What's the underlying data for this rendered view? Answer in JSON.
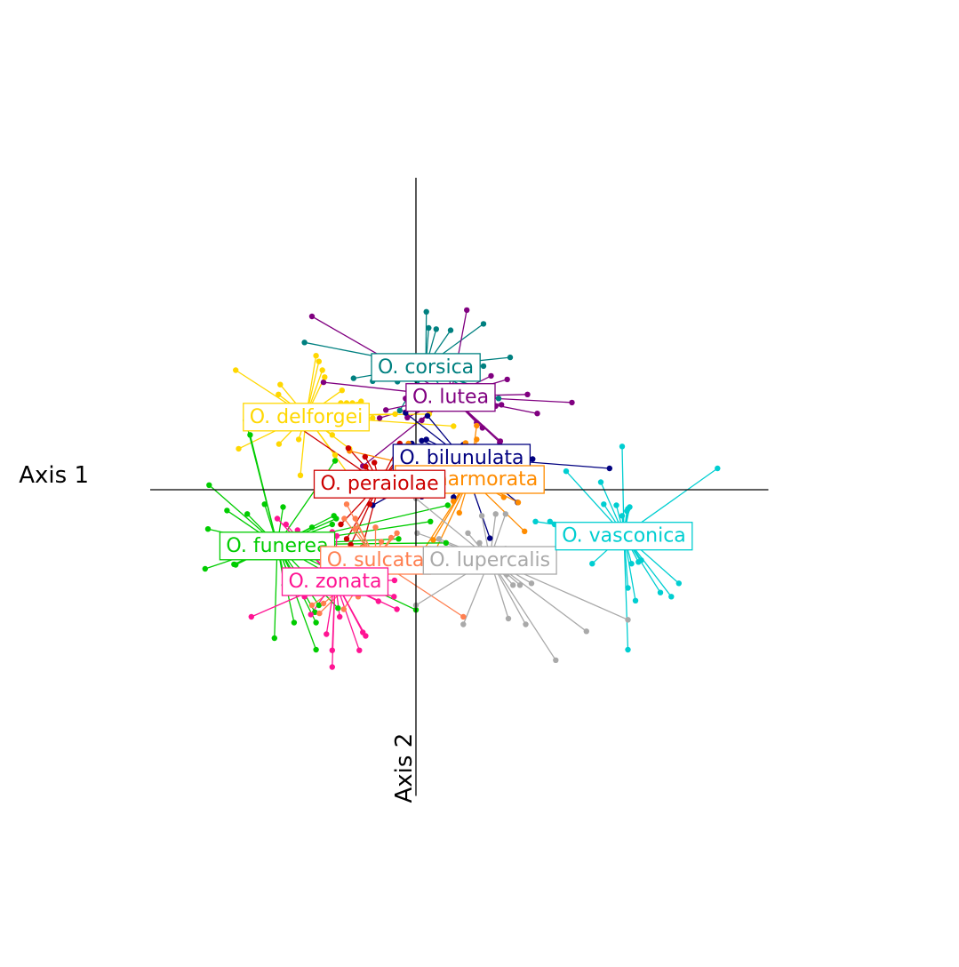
{
  "chart_data": {
    "type": "scatter",
    "style": "star-plot (each specimen connected to its group centroid)",
    "xlabel": "Axis 1",
    "ylabel": "Axis 2",
    "xlim": [
      -4.6,
      6.1
    ],
    "ylim": [
      -5.3,
      5.4
    ],
    "grid": false,
    "legend": "none (group names labelled at centroids)",
    "groups": [
      {
        "name": "O. corsica",
        "color": "#008080",
        "centroid": [
          0.17,
          2.14
        ],
        "points": [
          [
            0.18,
            3.08
          ],
          [
            0.22,
            2.8
          ],
          [
            0.35,
            2.78
          ],
          [
            0.6,
            2.76
          ],
          [
            1.17,
            2.87
          ],
          [
            -1.93,
            2.55
          ],
          [
            1.63,
            2.29
          ],
          [
            1.17,
            2.14
          ],
          [
            -0.73,
            2.23
          ],
          [
            -0.65,
            2.21
          ],
          [
            -0.44,
            2.21
          ],
          [
            -1.08,
            1.93
          ],
          [
            -0.75,
            1.88
          ],
          [
            -0.32,
            1.87
          ],
          [
            0.02,
            1.88
          ],
          [
            0.45,
            1.92
          ],
          [
            0.85,
            1.95
          ],
          [
            -0.57,
            1.96
          ],
          [
            0.92,
            1.73
          ],
          [
            1.3,
            1.66
          ],
          [
            1.43,
            1.58
          ],
          [
            -0.28,
            1.37
          ],
          [
            0.28,
            1.95
          ],
          [
            0.47,
            1.72
          ]
        ]
      },
      {
        "name": "O. lutea",
        "color": "#800080",
        "centroid": [
          0.6,
          1.62
        ],
        "points": [
          [
            -1.8,
            3.0
          ],
          [
            0.88,
            3.11
          ],
          [
            -0.92,
            0.41
          ],
          [
            -1.6,
            1.86
          ],
          [
            1.3,
            1.97
          ],
          [
            1.58,
            1.91
          ],
          [
            1.93,
            1.65
          ],
          [
            2.7,
            1.51
          ],
          [
            2.1,
            1.32
          ],
          [
            1.48,
            1.47
          ],
          [
            1.38,
            1.45
          ],
          [
            1.05,
            1.16
          ],
          [
            1.45,
            0.82
          ],
          [
            -0.63,
            1.24
          ],
          [
            -0.18,
            1.58
          ],
          [
            -0.52,
            1.38
          ],
          [
            0.32,
            1.72
          ],
          [
            0.58,
            2.05
          ],
          [
            1.15,
            1.07
          ],
          [
            1.46,
            0.84
          ],
          [
            0.1,
            1.2
          ],
          [
            -0.15,
            1.25
          ]
        ]
      },
      {
        "name": "O. delforgei",
        "color": "#FFD700",
        "centroid": [
          -1.9,
          1.28
        ],
        "points": [
          [
            -3.12,
            2.07
          ],
          [
            -1.73,
            2.32
          ],
          [
            -1.68,
            2.22
          ],
          [
            -1.62,
            2.07
          ],
          [
            -1.58,
            1.95
          ],
          [
            -2.35,
            1.82
          ],
          [
            -2.38,
            1.65
          ],
          [
            -1.28,
            1.72
          ],
          [
            -0.95,
            1.53
          ],
          [
            -1.1,
            1.5
          ],
          [
            -1.2,
            1.5
          ],
          [
            -1.3,
            1.5
          ],
          [
            -3.07,
            0.71
          ],
          [
            -2.37,
            0.79
          ],
          [
            -2.03,
            0.87
          ],
          [
            -1.15,
            0.71
          ],
          [
            -2.0,
            0.25
          ],
          [
            -0.36,
            1.31
          ],
          [
            0.23,
            1.31
          ],
          [
            -0.75,
            1.24
          ],
          [
            -1.15,
            0.24
          ],
          [
            -1.4,
            0.6
          ],
          [
            0.65,
            1.1
          ],
          [
            -1.45,
            0.95
          ]
        ]
      },
      {
        "name": "O. bilunulata",
        "color": "#000080",
        "centroid": [
          0.79,
          0.57
        ],
        "points": [
          [
            2.02,
            0.53
          ],
          [
            3.35,
            0.37
          ],
          [
            0.2,
            1.28
          ],
          [
            -0.18,
            1.33
          ],
          [
            0.18,
            0.87
          ],
          [
            0.82,
            0.78
          ],
          [
            0.93,
            0.52
          ],
          [
            1.72,
            0.19
          ],
          [
            1.76,
            -0.22
          ],
          [
            0.65,
            -0.13
          ],
          [
            0.1,
            -0.12
          ],
          [
            0.1,
            0.85
          ],
          [
            -0.07,
            0.8
          ],
          [
            -0.75,
            -0.27
          ],
          [
            1.28,
            -0.84
          ]
        ]
      },
      {
        "name": "O. marmorata",
        "color": "#FF8C00",
        "centroid": [
          0.93,
          0.2
        ],
        "points": [
          [
            1.75,
            0.2
          ],
          [
            2.17,
            0.0
          ],
          [
            1.52,
            -0.13
          ],
          [
            1.77,
            -0.22
          ],
          [
            1.05,
            0.87
          ],
          [
            1.08,
            0.7
          ],
          [
            0.78,
            0.65
          ],
          [
            0.62,
            0.6
          ],
          [
            0.78,
            0.49
          ],
          [
            0.86,
            0.81
          ],
          [
            -0.13,
            0.8
          ],
          [
            -1.15,
            0.67
          ],
          [
            -0.53,
            0.3
          ],
          [
            1.88,
            -0.72
          ],
          [
            0.05,
            -1.17
          ],
          [
            0.17,
            -1.4
          ],
          [
            1.05,
            1.11
          ],
          [
            0.3,
            -0.87
          ],
          [
            0.65,
            -0.2
          ],
          [
            0.75,
            -0.4
          ]
        ]
      },
      {
        "name": "O. peraiolae",
        "color": "#CC0000",
        "centroid": [
          -0.63,
          0.12
        ],
        "points": [
          [
            -2.0,
            1.06
          ],
          [
            -1.17,
            0.72
          ],
          [
            -0.88,
            0.57
          ],
          [
            -0.28,
            0.8
          ],
          [
            -0.22,
            0.6
          ],
          [
            -0.3,
            0.57
          ],
          [
            -0.72,
            0.47
          ],
          [
            -0.87,
            0.4
          ],
          [
            -1.43,
            0.0
          ],
          [
            -0.18,
            0.0
          ],
          [
            -0.55,
            -0.11
          ],
          [
            -0.8,
            -0.25
          ],
          [
            -0.93,
            -1.0
          ],
          [
            -1.13,
            -0.95
          ],
          [
            -1.2,
            -0.85
          ],
          [
            -1.3,
            -0.6
          ]
        ]
      },
      {
        "name": "O. funerea",
        "color": "#00CC00",
        "centroid": [
          -2.4,
          -0.95
        ],
        "points": [
          [
            -2.95,
            1.2
          ],
          [
            -2.87,
            0.95
          ],
          [
            -3.58,
            0.08
          ],
          [
            -2.62,
            -0.25
          ],
          [
            -2.3,
            -0.3
          ],
          [
            -1.4,
            0.5
          ],
          [
            -3.27,
            -0.36
          ],
          [
            -2.92,
            -0.42
          ],
          [
            -3.6,
            -0.68
          ],
          [
            -1.42,
            -0.45
          ],
          [
            -1.38,
            -0.5
          ],
          [
            -1.45,
            -0.6
          ],
          [
            -1.8,
            -0.65
          ],
          [
            -3.12,
            -1.3
          ],
          [
            -3.15,
            -1.29
          ],
          [
            -3.65,
            -1.37
          ],
          [
            -2.2,
            -1.5
          ],
          [
            -2.28,
            -1.65
          ],
          [
            -2.45,
            -2.57
          ],
          [
            -1.75,
            -2.12
          ],
          [
            -1.68,
            -2.0
          ],
          [
            -1.35,
            -2.05
          ],
          [
            -1.73,
            -2.77
          ],
          [
            -2.11,
            -2.3
          ],
          [
            -1.73,
            -2.3
          ],
          [
            -1.35,
            -1.55
          ],
          [
            0.55,
            -0.27
          ],
          [
            0.25,
            -0.55
          ],
          [
            0.52,
            -0.92
          ],
          [
            0.0,
            -2.08
          ],
          [
            -0.3,
            -0.85
          ],
          [
            -0.4,
            -1.25
          ]
        ]
      },
      {
        "name": "O. sulcata",
        "color": "#FF7F50",
        "centroid": [
          -0.7,
          -1.2
        ],
        "points": [
          [
            -1.2,
            -0.25
          ],
          [
            -1.24,
            -0.5
          ],
          [
            -1.05,
            -0.5
          ],
          [
            -1.05,
            -0.67
          ],
          [
            -0.7,
            -0.65
          ],
          [
            -0.43,
            -0.83
          ],
          [
            -0.33,
            -0.75
          ],
          [
            -0.6,
            -0.9
          ],
          [
            -0.92,
            -1.0
          ],
          [
            -0.85,
            -1.1
          ],
          [
            -0.95,
            -1.3
          ],
          [
            -1.6,
            -1.97
          ],
          [
            -1.25,
            -2.07
          ],
          [
            -1.67,
            -2.14
          ],
          [
            -1.8,
            -2.0
          ],
          [
            0.82,
            -2.2
          ],
          [
            -0.23,
            -1.38
          ],
          [
            -0.8,
            -1.55
          ],
          [
            -1.0,
            -1.85
          ]
        ]
      },
      {
        "name": "O. zonata",
        "color": "#FF1493",
        "centroid": [
          -1.4,
          -1.57
        ],
        "points": [
          [
            -2.4,
            -0.5
          ],
          [
            -2.25,
            -0.6
          ],
          [
            -2.05,
            -0.7
          ],
          [
            -1.45,
            -0.73
          ],
          [
            -1.37,
            -0.8
          ],
          [
            -1.45,
            -0.98
          ],
          [
            -1.97,
            -1.58
          ],
          [
            -1.93,
            -1.85
          ],
          [
            -2.85,
            -2.2
          ],
          [
            -1.82,
            -2.16
          ],
          [
            -1.32,
            -2.2
          ],
          [
            -1.55,
            -2.5
          ],
          [
            -1.45,
            -2.78
          ],
          [
            -1.45,
            -3.07
          ],
          [
            -0.98,
            -2.78
          ],
          [
            -0.87,
            -2.53
          ],
          [
            -0.92,
            -2.47
          ],
          [
            -0.33,
            -2.07
          ],
          [
            -0.65,
            -1.93
          ],
          [
            -0.38,
            -1.85
          ],
          [
            -0.37,
            -1.57
          ],
          [
            -0.55,
            -1.57
          ]
        ]
      },
      {
        "name": "O. lupercalis",
        "color": "#A9A9A9",
        "centroid": [
          1.28,
          -1.2
        ],
        "points": [
          [
            1.14,
            -0.45
          ],
          [
            1.38,
            -0.42
          ],
          [
            1.55,
            -0.42
          ],
          [
            0.9,
            -0.75
          ],
          [
            1.55,
            -1.02
          ],
          [
            1.37,
            -1.02
          ],
          [
            1.75,
            -1.07
          ],
          [
            1.1,
            -0.92
          ],
          [
            0.4,
            -0.85
          ],
          [
            0.95,
            -1.18
          ],
          [
            1.57,
            -1.47
          ],
          [
            1.68,
            -1.65
          ],
          [
            1.8,
            -1.65
          ],
          [
            2.0,
            -1.62
          ],
          [
            1.6,
            -2.23
          ],
          [
            1.9,
            -2.33
          ],
          [
            2.95,
            -2.45
          ],
          [
            3.67,
            -2.25
          ],
          [
            2.42,
            -2.95
          ],
          [
            0.82,
            -2.33
          ],
          [
            0.0,
            -2.0
          ],
          [
            0.02,
            -1.37
          ],
          [
            0.02,
            -0.75
          ],
          [
            0.0,
            -0.15
          ]
        ]
      },
      {
        "name": "O. vasconica",
        "color": "#00CED1",
        "centroid": [
          3.6,
          -0.78
        ],
        "points": [
          [
            3.57,
            0.75
          ],
          [
            5.22,
            0.37
          ],
          [
            2.6,
            0.32
          ],
          [
            3.2,
            0.13
          ],
          [
            3.25,
            -0.25
          ],
          [
            3.47,
            -0.27
          ],
          [
            3.67,
            -0.33
          ],
          [
            3.65,
            -0.37
          ],
          [
            3.7,
            -0.3
          ],
          [
            3.57,
            -0.45
          ],
          [
            3.5,
            -0.6
          ],
          [
            2.07,
            -0.55
          ],
          [
            2.32,
            -0.55
          ],
          [
            2.4,
            -0.6
          ],
          [
            3.0,
            -0.72
          ],
          [
            4.18,
            -0.92
          ],
          [
            3.85,
            -1.25
          ],
          [
            3.9,
            -1.22
          ],
          [
            3.05,
            -1.28
          ],
          [
            3.73,
            -1.28
          ],
          [
            3.67,
            -1.7
          ],
          [
            3.8,
            -1.92
          ],
          [
            4.55,
            -1.62
          ],
          [
            4.23,
            -1.78
          ],
          [
            4.42,
            -1.85
          ],
          [
            3.67,
            -2.77
          ]
        ]
      }
    ]
  }
}
